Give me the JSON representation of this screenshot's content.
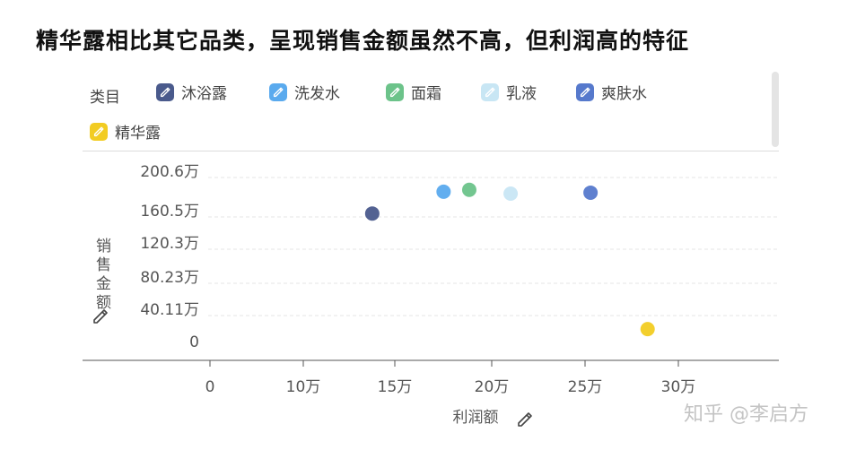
{
  "title": "精华露相比其它品类，呈现销售金额虽然不高，但利润高的特征",
  "legend": {
    "caption": "类目",
    "items": [
      {
        "label": "沐浴露",
        "color": "#4a5a8c"
      },
      {
        "label": "洗发水",
        "color": "#5aaaee"
      },
      {
        "label": "面霜",
        "color": "#6cc38a"
      },
      {
        "label": "乳液",
        "color": "#c8e6f4"
      },
      {
        "label": "爽肤水",
        "color": "#5679cc"
      },
      {
        "label": "精华露",
        "color": "#f2cc22"
      }
    ]
  },
  "watermark": "知乎 @李启方",
  "chart_data": {
    "type": "scatter",
    "title": "精华露相比其它品类，呈现销售金额虽然不高，但利润高的特征",
    "xlabel": "利润额",
    "ylabel": "销售金额",
    "x_ticks": [
      "0",
      "10万",
      "15万",
      "20万",
      "25万",
      "30万"
    ],
    "y_ticks": [
      "0",
      "40.11万",
      "80.23万",
      "120.3万",
      "160.5万",
      "200.6万"
    ],
    "xlim": [
      0,
      40
    ],
    "ylim": [
      0,
      200.6
    ],
    "grid": true,
    "legend_position": "top",
    "series": [
      {
        "name": "沐浴露",
        "x": 11.5,
        "y": 155.0
      },
      {
        "name": "洗发水",
        "x": 16.5,
        "y": 178.0
      },
      {
        "name": "面霜",
        "x": 18.3,
        "y": 180.0
      },
      {
        "name": "乳液",
        "x": 21.2,
        "y": 176.0
      },
      {
        "name": "爽肤水",
        "x": 26.8,
        "y": 177.0
      },
      {
        "name": "精华露",
        "x": 30.8,
        "y": 33.0
      }
    ]
  }
}
